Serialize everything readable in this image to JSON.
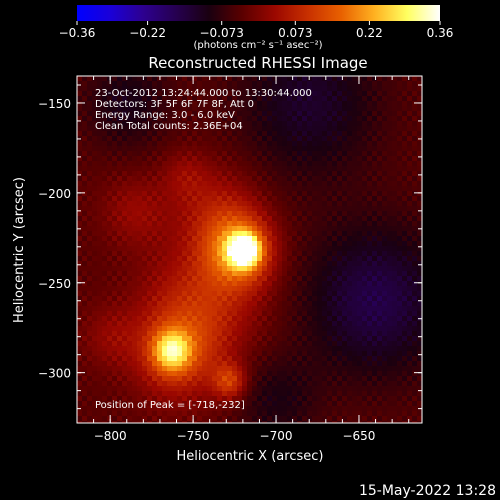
{
  "chart_data": {
    "type": "heatmap",
    "title": "Reconstructed RHESSI Image",
    "xlabel": "Heliocentric X (arcsec)",
    "ylabel": "Heliocentric Y (arcsec)",
    "xlim": [
      -820,
      -612
    ],
    "ylim": [
      -328,
      -135
    ],
    "x_ticks": [
      -800,
      -750,
      -700,
      -650
    ],
    "x_tick_labels": [
      "−800",
      "−750",
      "−700",
      "−650"
    ],
    "y_ticks": [
      -150,
      -200,
      -250,
      -300
    ],
    "y_tick_labels": [
      "−150",
      "−200",
      "−250",
      "−300"
    ],
    "grid": false,
    "colorbar": {
      "range": [
        -0.36,
        0.36
      ],
      "ticks": [
        -0.36,
        -0.22,
        -0.073,
        0.073,
        0.22,
        0.36
      ],
      "tick_labels": [
        "−0.36",
        "−0.22",
        "−0.073",
        "0.073",
        "0.22",
        "0.36"
      ],
      "unit_label": "(photons cm⁻² s⁻¹ asec⁻²)",
      "colormap": [
        "#0000ff",
        "#1a00d9",
        "#2d0090",
        "#260050",
        "#1a0010",
        "#5a0000",
        "#9b0800",
        "#c83000",
        "#e86000",
        "#ffb020",
        "#ffff60",
        "#ffffff"
      ]
    },
    "info_lines": [
      "23-Oct-2012 13:24:44.000 to 13:30:44.000",
      "Detectors: 3F 5F 6F 7F 8F, Att 0",
      "Energy Range: 3.0 - 6.0 keV",
      "Clean     Total counts: 2.36E+04"
    ],
    "peak_label": "Position of Peak = [-718,-232]",
    "peak": {
      "x": -718,
      "y": -232
    },
    "sources": [
      {
        "x": -719,
        "y": -232,
        "amp": 0.36,
        "sigma": 6
      },
      {
        "x": -722,
        "y": -232,
        "amp": 0.22,
        "sigma": 14
      },
      {
        "x": -763,
        "y": -288,
        "amp": 0.22,
        "sigma": 8
      },
      {
        "x": -760,
        "y": -290,
        "amp": 0.12,
        "sigma": 18
      },
      {
        "x": -728,
        "y": -305,
        "amp": 0.14,
        "sigma": 7
      },
      {
        "x": -745,
        "y": -262,
        "amp": 0.11,
        "sigma": 24
      },
      {
        "x": -735,
        "y": -210,
        "amp": 0.08,
        "sigma": 18
      },
      {
        "x": -785,
        "y": -210,
        "amp": 0.06,
        "sigma": 14
      },
      {
        "x": -755,
        "y": -190,
        "amp": 0.05,
        "sigma": 10
      },
      {
        "x": -800,
        "y": -280,
        "amp": 0.05,
        "sigma": 12
      }
    ],
    "negative_regions": [
      {
        "x": -640,
        "y": -260,
        "amp": -0.12,
        "sigma": 30
      },
      {
        "x": -680,
        "y": -150,
        "amp": -0.09,
        "sigma": 30
      },
      {
        "x": -790,
        "y": -150,
        "amp": -0.07,
        "sigma": 18
      },
      {
        "x": -700,
        "y": -315,
        "amp": -0.06,
        "sigma": 18
      }
    ]
  },
  "timestamp": "15-May-2022 13:28"
}
